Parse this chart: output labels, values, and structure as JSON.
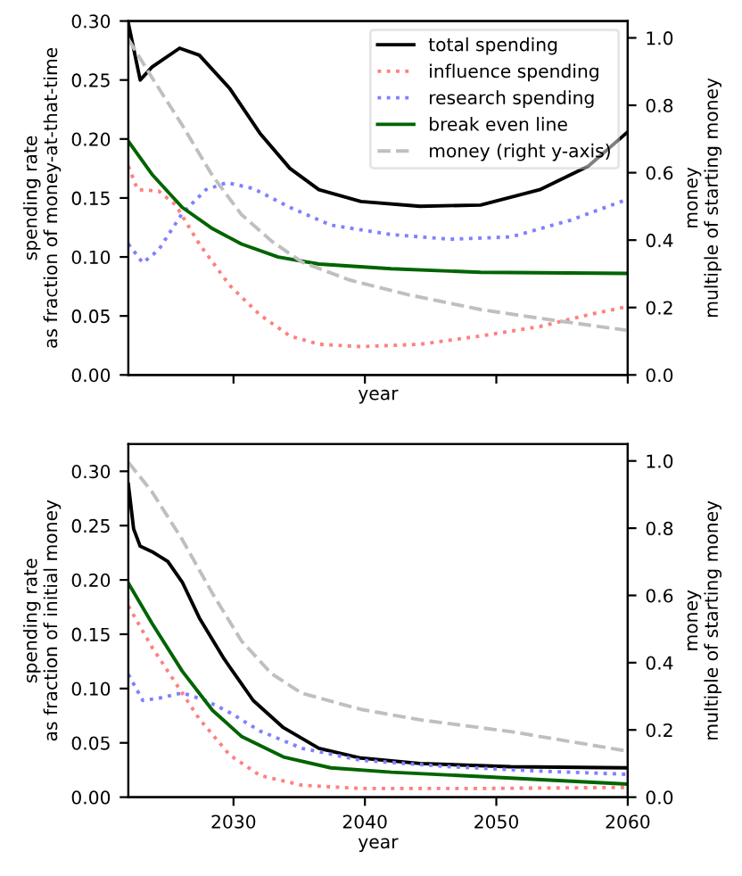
{
  "chart_data": [
    {
      "type": "line",
      "xlabel": "year",
      "ylabel": "spending rate\nas fraction of money-at-that-time",
      "y2label": "money\nmultiple of starting money",
      "legend": "top right",
      "tick_labels": "y",
      "xlim": [
        2022,
        2060
      ],
      "xticks": [
        {
          "value": 2030,
          "label": null
        },
        {
          "value": 2040,
          "label": null
        },
        {
          "value": 2050,
          "label": null
        },
        {
          "value": 2060,
          "label": null
        }
      ],
      "ylim": [
        0,
        0.3
      ],
      "yticks": [
        {
          "value": 0,
          "label": "0.00"
        },
        {
          "value": 0.05,
          "label": "0.05"
        },
        {
          "value": 0.1,
          "label": "0.10"
        },
        {
          "value": 0.15,
          "label": "0.15"
        },
        {
          "value": 0.2,
          "label": "0.20"
        },
        {
          "value": 0.25,
          "label": "0.25"
        },
        {
          "value": 0.3,
          "label": "0.30"
        }
      ],
      "y2lim": [
        0,
        1.05
      ],
      "y2ticks": [
        {
          "value": 0,
          "label": "0.0"
        },
        {
          "value": 0.2,
          "label": "0.2"
        },
        {
          "value": 0.4,
          "label": "0.4"
        },
        {
          "value": 0.6,
          "label": "0.6"
        },
        {
          "value": 0.8,
          "label": "0.8"
        },
        {
          "value": 1.0,
          "label": "1.0"
        }
      ],
      "series": [
        {
          "name": "total spending",
          "color": "#000000",
          "line_style": "solid",
          "x": [
            2022,
            2022.9,
            2023.8,
            2025.9,
            2027.4,
            2029.7,
            2032,
            2034.3,
            2036.5,
            2039.7,
            2044.2,
            2048.8,
            2053.3,
            2057,
            2060
          ],
          "values": [
            0.298,
            0.25,
            0.261,
            0.277,
            0.271,
            0.243,
            0.205,
            0.175,
            0.157,
            0.147,
            0.143,
            0.144,
            0.157,
            0.177,
            0.206
          ]
        },
        {
          "name": "influence spending",
          "color": "#ff8080",
          "line_style": "dotted",
          "x": [
            2022,
            2022.7,
            2024.3,
            2025.6,
            2027.4,
            2029.7,
            2032,
            2034.3,
            2036.5,
            2039.7,
            2044.2,
            2048.8,
            2053.3,
            2057,
            2060
          ],
          "values": [
            0.177,
            0.157,
            0.156,
            0.144,
            0.111,
            0.076,
            0.051,
            0.033,
            0.026,
            0.024,
            0.026,
            0.033,
            0.041,
            0.051,
            0.058
          ]
        },
        {
          "name": "research spending",
          "color": "#8080ff",
          "line_style": "dotted",
          "x": [
            2022,
            2023.1,
            2024.3,
            2026.1,
            2027.9,
            2029.5,
            2031.5,
            2034.3,
            2037.4,
            2042,
            2046.5,
            2051.1,
            2055.6,
            2060
          ],
          "values": [
            0.111,
            0.095,
            0.106,
            0.137,
            0.157,
            0.163,
            0.158,
            0.142,
            0.127,
            0.119,
            0.115,
            0.117,
            0.131,
            0.149
          ]
        },
        {
          "name": "break even line",
          "color": "#006400",
          "line_style": "solid",
          "x": [
            2022,
            2023.8,
            2026.1,
            2028.4,
            2030.6,
            2033.4,
            2036.5,
            2042,
            2048.8,
            2060
          ],
          "values": [
            0.198,
            0.17,
            0.142,
            0.124,
            0.111,
            0.1,
            0.094,
            0.09,
            0.087,
            0.086
          ]
        },
        {
          "name": "money (right y-axis)",
          "color": "#bfbfbf",
          "line_style": "dashed",
          "axis": "y2",
          "x": [
            2022,
            2023.8,
            2026.1,
            2028.4,
            2030.6,
            2032.9,
            2035.2,
            2038.8,
            2043.3,
            2048.8,
            2053.3,
            2060
          ],
          "values": [
            0.996,
            0.882,
            0.741,
            0.591,
            0.476,
            0.397,
            0.335,
            0.282,
            0.238,
            0.194,
            0.168,
            0.132
          ]
        }
      ]
    },
    {
      "type": "line",
      "xlabel": "year",
      "ylabel": "spending rate\nas fraction of initial money",
      "y2label": "money\nmultiple of starting money",
      "xlim": [
        2022,
        2060
      ],
      "xticks": [
        2030,
        2040,
        2050,
        2060
      ],
      "ylim": [
        0,
        0.325
      ],
      "yticks": [
        {
          "value": 0,
          "label": "0.00"
        },
        {
          "value": 0.05,
          "label": "0.05"
        },
        {
          "value": 0.1,
          "label": "0.10"
        },
        {
          "value": 0.15,
          "label": "0.15"
        },
        {
          "value": 0.2,
          "label": "0.20"
        },
        {
          "value": 0.25,
          "label": "0.25"
        },
        {
          "value": 0.3,
          "label": "0.30"
        }
      ],
      "y2lim": [
        0,
        1.05
      ],
      "y2ticks": [
        {
          "value": 0,
          "label": "0.0"
        },
        {
          "value": 0.2,
          "label": "0.2"
        },
        {
          "value": 0.4,
          "label": "0.4"
        },
        {
          "value": 0.6,
          "label": "0.6"
        },
        {
          "value": 0.8,
          "label": "0.8"
        },
        {
          "value": 1.0,
          "label": "1.0"
        }
      ],
      "series": [
        {
          "color": "#000000",
          "line_style": "solid",
          "x": [
            2022,
            2022.4,
            2022.9,
            2023.8,
            2025,
            2026.1,
            2027.4,
            2029.3,
            2031.5,
            2033.8,
            2036.5,
            2039.7,
            2044.2,
            2051.1,
            2060
          ],
          "values": [
            0.288,
            0.247,
            0.231,
            0.226,
            0.217,
            0.198,
            0.165,
            0.127,
            0.089,
            0.064,
            0.045,
            0.036,
            0.031,
            0.028,
            0.027
          ]
        },
        {
          "color": "#ff8080",
          "line_style": "dotted",
          "x": [
            2022,
            2023.8,
            2025.6,
            2027.4,
            2029.7,
            2032,
            2035.2,
            2039.7,
            2048.8,
            2060
          ],
          "values": [
            0.176,
            0.138,
            0.105,
            0.072,
            0.039,
            0.02,
            0.011,
            0.008,
            0.008,
            0.009
          ]
        },
        {
          "color": "#8080ff",
          "line_style": "dotted",
          "x": [
            2022,
            2023.1,
            2024.3,
            2026.1,
            2027.9,
            2029.7,
            2032,
            2035.2,
            2039.7,
            2046.5,
            2053.3,
            2060
          ],
          "values": [
            0.113,
            0.089,
            0.091,
            0.096,
            0.089,
            0.078,
            0.061,
            0.045,
            0.034,
            0.028,
            0.024,
            0.021
          ]
        },
        {
          "color": "#006400",
          "line_style": "solid",
          "x": [
            2022,
            2023.8,
            2026.1,
            2028.4,
            2030.6,
            2033.8,
            2037.4,
            2042,
            2048.8,
            2060
          ],
          "values": [
            0.197,
            0.16,
            0.116,
            0.08,
            0.056,
            0.037,
            0.027,
            0.023,
            0.019,
            0.012
          ]
        },
        {
          "color": "#bfbfbf",
          "line_style": "dashed",
          "axis": "y2",
          "x": [
            2022,
            2023.8,
            2026.1,
            2028.4,
            2030.6,
            2032.9,
            2035.2,
            2039.7,
            2044.2,
            2051.1,
            2060
          ],
          "values": [
            0.996,
            0.908,
            0.766,
            0.606,
            0.465,
            0.367,
            0.309,
            0.261,
            0.23,
            0.195,
            0.137
          ]
        }
      ]
    }
  ]
}
